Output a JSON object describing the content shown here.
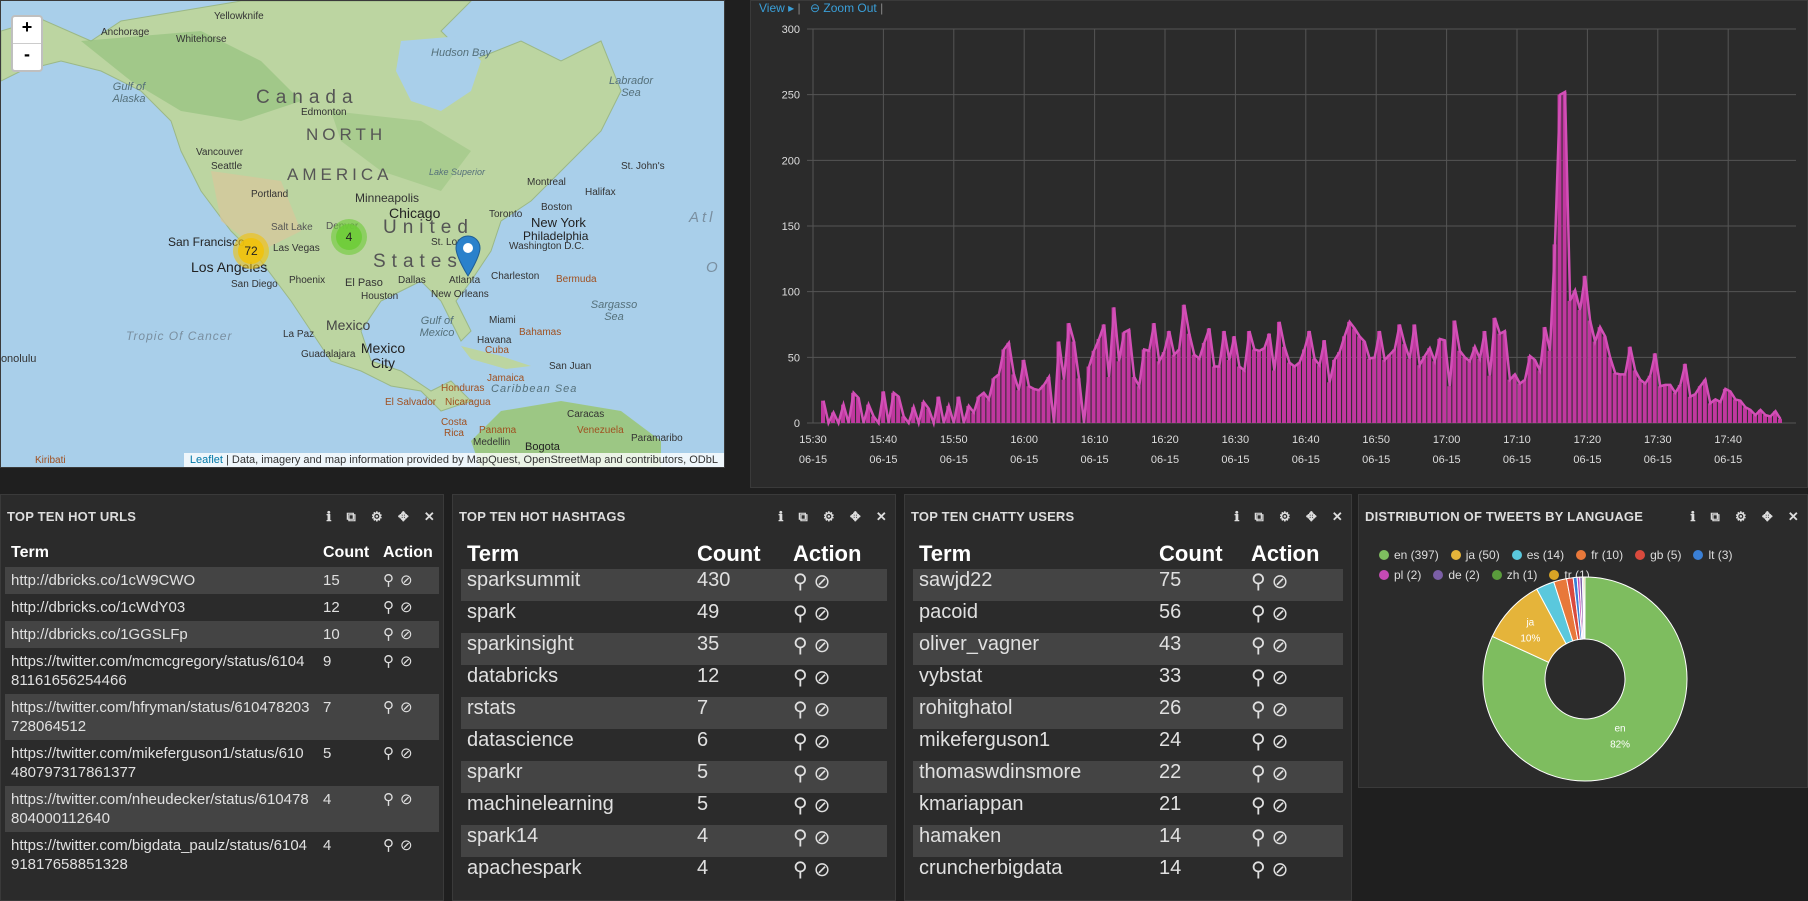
{
  "map": {
    "zoom_in": "+",
    "zoom_out": "-",
    "attribution_link": "Leaflet",
    "attribution_text": " | Data, imagery and map information provided by MapQuest, OpenStreetMap and contributors, ODbL",
    "cluster_west": "72",
    "cluster_central": "4",
    "labels": {
      "yellowknife": "Yellowknife",
      "anchorage": "Anchorage",
      "whitehorse": "Whitehorse",
      "gulf_alaska": "Gulf of Alaska",
      "hudson_bay": "Hudson Bay",
      "labrador_sea": "Labrador Sea",
      "canada": "Canada",
      "north": "NORTH",
      "america": "AMERICA",
      "edmonton": "Edmonton",
      "vancouver": "Vancouver",
      "seattle": "Seattle",
      "portland": "Portland",
      "st_johns": "St. John's",
      "lake_superior": "Lake Superior",
      "montreal": "Montreal",
      "halifax": "Halifax",
      "minneapolis": "Minneapolis",
      "chicago": "Chicago",
      "toronto": "Toronto",
      "boston": "Boston",
      "new_york": "New York",
      "philadelphia": "Philadelphia",
      "washington": "Washington D.C.",
      "united": "United",
      "states": "States",
      "salt_lake": "Salt Lake",
      "denver": "Denver",
      "st_louis": "St. Louis",
      "san_francisco": "San Francisco",
      "las_vegas": "Las Vegas",
      "los_angeles": "Los Angeles",
      "san_diego": "San Diego",
      "phoenix": "Phoenix",
      "el_paso": "El Paso",
      "dallas": "Dallas",
      "houston": "Houston",
      "atlanta": "Atlanta",
      "charleston": "Charleston",
      "new_orleans": "New Orleans",
      "bermuda": "Bermuda",
      "sargasso": "Sargasso Sea",
      "gulf_mexico": "Gulf of Mexico",
      "miami": "Miami",
      "bahamas": "Bahamas",
      "havana": "Havana",
      "cuba": "Cuba",
      "mexico": "Mexico",
      "mexico_city": "Mexico City",
      "guadalajara": "Guadalajara",
      "la_paz": "La Paz",
      "tropic": "Tropic Of Cancer",
      "honolulu": "Honolulu",
      "san_juan": "San Juan",
      "jamaica": "Jamaica",
      "caribbean": "Caribbean Sea",
      "honduras": "Honduras",
      "el_salvador": "El Salvador",
      "nicaragua": "Nicaragua",
      "costa_rica": "Costa Rica",
      "panama": "Panama",
      "medellin": "Medellin",
      "bogota": "Bogota",
      "caracas": "Caracas",
      "venezuela": "Venezuela",
      "paramaribo": "Paramaribo",
      "kiribati": "Kiribati",
      "atl": "Atl",
      "o": "O"
    }
  },
  "chart": {
    "view_label": "View",
    "zoom_out_label": "Zoom Out",
    "colors": {
      "bars": "#c0379f",
      "line": "#d24fb6"
    }
  },
  "chart_data": {
    "type": "bar",
    "title": "",
    "xlabel": "",
    "ylabel": "",
    "ylim": [
      0,
      300
    ],
    "yticks": [
      "300",
      "250",
      "200",
      "150",
      "100",
      "50",
      "0"
    ],
    "xticks": [
      {
        "time": "15:30",
        "date": "06-15"
      },
      {
        "time": "15:40",
        "date": "06-15"
      },
      {
        "time": "15:50",
        "date": "06-15"
      },
      {
        "time": "16:00",
        "date": "06-15"
      },
      {
        "time": "16:10",
        "date": "06-15"
      },
      {
        "time": "16:20",
        "date": "06-15"
      },
      {
        "time": "16:30",
        "date": "06-15"
      },
      {
        "time": "16:40",
        "date": "06-15"
      },
      {
        "time": "16:50",
        "date": "06-15"
      },
      {
        "time": "17:00",
        "date": "06-15"
      },
      {
        "time": "17:10",
        "date": "06-15"
      },
      {
        "time": "17:20",
        "date": "06-15"
      },
      {
        "time": "17:30",
        "date": "06-15"
      },
      {
        "time": "17:40",
        "date": "06-15"
      }
    ],
    "series": [
      {
        "values": [
          17,
          0,
          8,
          0,
          14,
          0,
          23,
          19,
          0,
          14,
          5,
          0,
          24,
          0,
          23,
          20,
          5,
          0,
          12,
          0,
          16,
          11,
          0,
          20,
          0,
          13,
          0,
          20,
          0,
          13,
          8,
          20,
          23,
          18,
          34,
          37,
          56,
          61,
          37,
          25,
          48,
          28,
          26,
          25,
          29,
          35,
          0,
          62,
          33,
          76,
          62,
          34,
          0,
          43,
          55,
          64,
          75,
          35,
          88,
          47,
          69,
          71,
          35,
          28,
          56,
          55,
          76,
          47,
          54,
          70,
          52,
          56,
          90,
          68,
          52,
          49,
          61,
          72,
          43,
          43,
          70,
          48,
          66,
          43,
          40,
          70,
          56,
          55,
          57,
          68,
          40,
          77,
          58,
          46,
          43,
          46,
          56,
          70,
          49,
          44,
          63,
          31,
          48,
          54,
          66,
          77,
          72,
          66,
          62,
          49,
          50,
          70,
          48,
          52,
          56,
          75,
          60,
          49,
          75,
          44,
          51,
          57,
          47,
          64,
          63,
          28,
          78,
          55,
          50,
          47,
          58,
          49,
          70,
          36,
          80,
          68,
          70,
          33,
          37,
          30,
          33,
          51,
          48,
          40,
          73,
          55,
          136,
          250,
          252,
          93,
          101,
          86,
          112,
          78,
          62,
          73,
          66,
          50,
          38,
          37,
          37,
          58,
          40,
          33,
          30,
          36,
          53,
          28,
          29,
          29,
          23,
          29,
          45,
          20,
          22,
          28,
          33,
          15,
          18,
          16,
          26,
          24,
          18,
          17,
          12,
          10,
          6,
          10,
          6,
          5,
          9,
          3
        ]
      }
    ]
  },
  "urls": {
    "title": "TOP TEN HOT URLS",
    "headers": {
      "term": "Term",
      "count": "Count",
      "action": "Action"
    },
    "rows": [
      {
        "term": "http://dbricks.co/1cW9CWO",
        "count": "15"
      },
      {
        "term": "http://dbricks.co/1cWdY03",
        "count": "12"
      },
      {
        "term": "http://dbricks.co/1GGSLFp",
        "count": "10"
      },
      {
        "term": "https://twitter.com/mcmcgregory/status/610481161656254466",
        "count": "9"
      },
      {
        "term": "https://twitter.com/hfryman/status/610478203728064512",
        "count": "7"
      },
      {
        "term": "https://twitter.com/mikeferguson1/status/610480797317861377",
        "count": "5"
      },
      {
        "term": "https://twitter.com/nheudecker/status/610478804000112640",
        "count": "4"
      },
      {
        "term": "https://twitter.com/bigdata_paulz/status/610491817658851328",
        "count": "4"
      }
    ]
  },
  "hashtags": {
    "title": "TOP TEN HOT HASHTAGS",
    "headers": {
      "term": "Term",
      "count": "Count",
      "action": "Action"
    },
    "rows": [
      {
        "term": "sparksummit",
        "count": "430"
      },
      {
        "term": "spark",
        "count": "49"
      },
      {
        "term": "sparkinsight",
        "count": "35"
      },
      {
        "term": "databricks",
        "count": "12"
      },
      {
        "term": "rstats",
        "count": "7"
      },
      {
        "term": "datascience",
        "count": "6"
      },
      {
        "term": "sparkr",
        "count": "5"
      },
      {
        "term": "machinelearning",
        "count": "5"
      },
      {
        "term": "spark14",
        "count": "4"
      },
      {
        "term": "apachespark",
        "count": "4"
      }
    ]
  },
  "users": {
    "title": "TOP TEN CHATTY USERS",
    "headers": {
      "term": "Term",
      "count": "Count",
      "action": "Action"
    },
    "rows": [
      {
        "term": "sawjd22",
        "count": "75"
      },
      {
        "term": "pacoid",
        "count": "56"
      },
      {
        "term": "oliver_vagner",
        "count": "43"
      },
      {
        "term": "vybstat",
        "count": "33"
      },
      {
        "term": "rohitghatol",
        "count": "26"
      },
      {
        "term": "mikeferguson1",
        "count": "24"
      },
      {
        "term": "thomaswdinsmore",
        "count": "22"
      },
      {
        "term": "kmariappan",
        "count": "21"
      },
      {
        "term": "hamaken",
        "count": "14"
      },
      {
        "term": "cruncherbigdata",
        "count": "14"
      }
    ]
  },
  "languages": {
    "title": "DISTRIBUTION OF TWEETS BY LANGUAGE",
    "legend": [
      {
        "label": "en (397)",
        "value": 397,
        "color": "#7ebd5f"
      },
      {
        "label": "ja (50)",
        "value": 50,
        "color": "#e5b43a"
      },
      {
        "label": "es (14)",
        "value": 14,
        "color": "#5ac8dd"
      },
      {
        "label": "fr (10)",
        "value": 10,
        "color": "#e8783a"
      },
      {
        "label": "gb (5)",
        "value": 5,
        "color": "#d94a3d"
      },
      {
        "label": "lt (3)",
        "value": 3,
        "color": "#3a7fd5"
      },
      {
        "label": "pl (2)",
        "value": 2,
        "color": "#c54ab4"
      },
      {
        "label": "de (2)",
        "value": 2,
        "color": "#7b5fa6"
      },
      {
        "label": "zh (1)",
        "value": 1,
        "color": "#5a9c3c"
      },
      {
        "label": "tr (1)",
        "value": 1,
        "color": "#d9a425"
      }
    ],
    "slice_labels": {
      "en": {
        "name": "en",
        "pct": "82%"
      },
      "ja": {
        "name": "ja",
        "pct": "10%"
      }
    }
  },
  "tools": {
    "info": "ℹ",
    "copy": "⧉",
    "settings": "⚙",
    "move": "✥",
    "close": "✕"
  },
  "icons": {
    "search": "🔍",
    "ban": "⊘"
  }
}
